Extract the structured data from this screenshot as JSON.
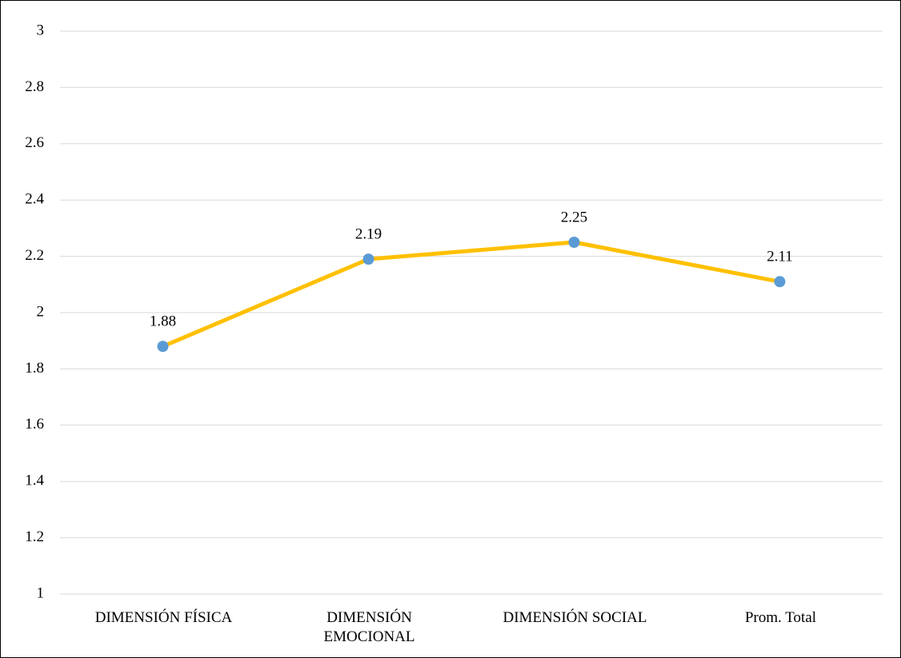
{
  "chart_data": {
    "type": "line",
    "categories": [
      "DIMENSIÓN FÍSICA",
      "DIMENSIÓN EMOCIONAL",
      "DIMENSIÓN SOCIAL",
      "Prom. Total"
    ],
    "series": [
      {
        "color": "#FFC000",
        "marker_color": "#5B9BD5",
        "values": [
          1.88,
          2.19,
          2.25,
          2.11
        ]
      }
    ],
    "ylim": [
      1,
      3
    ],
    "yticks": [
      1,
      1.2,
      1.4,
      1.6,
      1.8,
      2,
      2.2,
      2.4,
      2.6,
      2.8,
      3
    ],
    "grid": true
  }
}
